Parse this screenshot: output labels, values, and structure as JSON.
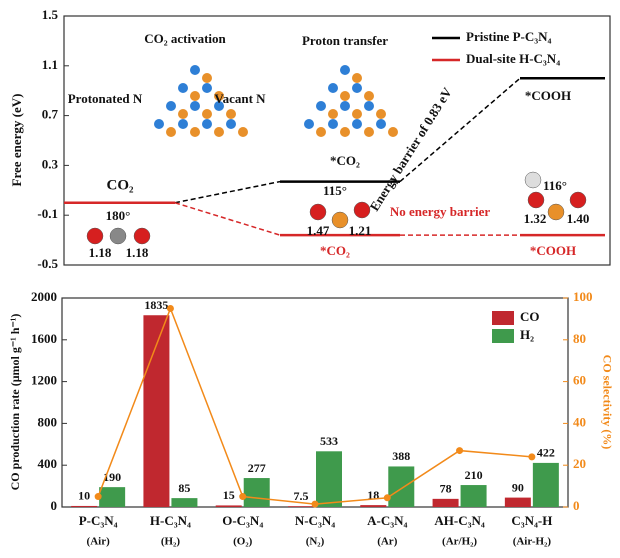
{
  "chart_data": [
    {
      "type": "energy-level",
      "ylabel": "Free energy (eV)",
      "ylim": [
        -0.5,
        1.5
      ],
      "yticks": [
        -0.5,
        -0.1,
        0.3,
        0.7,
        1.1,
        1.5
      ],
      "categories": [
        "CO₂",
        "*CO₂",
        "*COOH"
      ],
      "series": [
        {
          "name": "Pristine P-C₃N₄",
          "color": "#000000",
          "values": [
            0,
            0.17,
            1.0
          ]
        },
        {
          "name": "Dual-site H-C₃N₄",
          "color": "#d62728",
          "values": [
            0,
            -0.26,
            -0.26
          ]
        }
      ],
      "legend": "upper right",
      "annotations": [
        "CO₂ activation",
        "Proton transfer",
        "Protonated N",
        "Vacant N",
        "*CO₂",
        "Energy barrier of 0.83 eV",
        "No energy barrier",
        "*COOH",
        "*CO₂",
        "*COOH",
        "180°",
        "1.18",
        "1.18",
        "115°",
        "1.47",
        "1.21",
        "116°",
        "1.32",
        "1.40"
      ]
    },
    {
      "type": "bar",
      "ylabel": "CO production rate (μmol g⁻¹ h⁻¹)",
      "y2label": "CO selectivity (%)",
      "categories": [
        "P-C₃N₄",
        "H-C₃N₄",
        "O-C₃N₄",
        "N-C₃N₄",
        "A-C₃N₄",
        "AH-C₃N₄",
        "C₃N₄-H"
      ],
      "category_sublabels": [
        "(Air)",
        "(H₂)",
        "(O₂)",
        "(N₂)",
        "(Ar)",
        "(Ar/H₂)",
        "(Air-H₂)"
      ],
      "ylim": [
        0,
        2000
      ],
      "yticks": [
        0,
        400,
        800,
        1200,
        1600,
        2000
      ],
      "y2lim": [
        0,
        100
      ],
      "y2ticks": [
        0,
        20,
        40,
        60,
        80,
        100
      ],
      "series": [
        {
          "name": "CO",
          "color": "#c0282f",
          "values": [
            10,
            1835,
            15,
            7.5,
            18,
            78,
            90
          ]
        },
        {
          "name": "H₂",
          "color": "#3f9a4c",
          "values": [
            190,
            85,
            277,
            533,
            388,
            210,
            422
          ]
        },
        {
          "name": "CO selectivity",
          "color": "#f28a1a",
          "axis": "y2",
          "values": [
            5,
            95,
            5,
            1.4,
            4.4,
            27,
            24
          ]
        }
      ],
      "legend": "upper right"
    }
  ]
}
